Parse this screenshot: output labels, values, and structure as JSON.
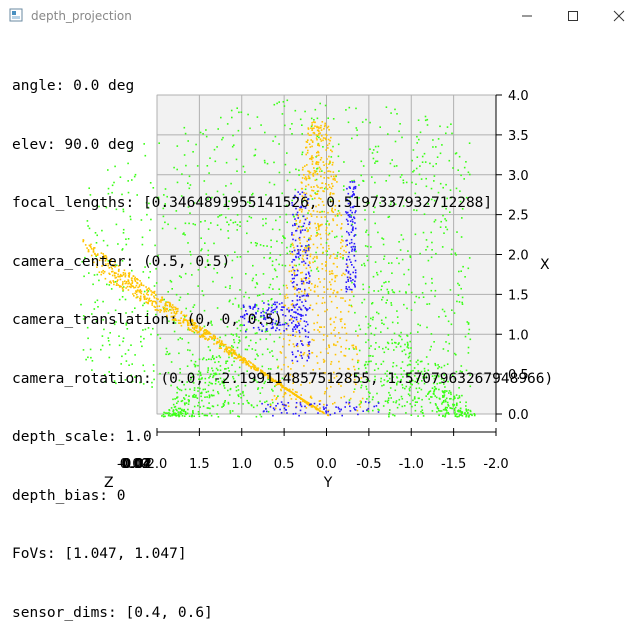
{
  "window": {
    "title": "depth_projection",
    "controls": [
      "minimize",
      "maximize",
      "close"
    ]
  },
  "info_lines": [
    "angle: 0.0 deg",
    "elev: 90.0 deg",
    "focal_lengths: [0.3464891955141526, 0.5197337932712288]",
    "camera_center: (0.5, 0.5)",
    "camera_translation: (0, 0, 0.5)",
    "camera_rotation: (0.0, -2.199114857512855, 1.5707963267948966)",
    "depth_scale: 1.0",
    "depth_bias: 0",
    "FoVs: [1.047, 1.047]",
    "sensor_dims: [0.4, 0.6]"
  ],
  "chart_data": {
    "type": "scatter",
    "projection": "3d",
    "axes": {
      "x": {
        "label": "X",
        "ticks": [
          "0.0",
          "0.5",
          "1.0",
          "1.5",
          "2.0",
          "2.5",
          "3.0",
          "3.5",
          "4.0"
        ],
        "range": [
          0,
          4
        ]
      },
      "y": {
        "label": "Y",
        "ticks": [
          "2.0",
          "1.5",
          "1.0",
          "0.5",
          "0.0",
          "-0.5",
          "-1.0",
          "-1.5",
          "-2.0"
        ],
        "range": [
          2,
          -2
        ]
      },
      "z": {
        "label": "Z",
        "ticks": [
          "-0.04",
          "-0.02",
          "0.00",
          "0.02",
          "0.04"
        ]
      }
    },
    "colors": {
      "green": "#39ff14",
      "orange": "#ffc400",
      "blue": "#2a1aff",
      "pane": "#f2f2f2",
      "grid": "#b0b0b0"
    },
    "clusters": [
      {
        "color": "green",
        "description": "outer cloud"
      },
      {
        "color": "orange",
        "description": "center surface"
      },
      {
        "color": "blue",
        "description": "edge points"
      }
    ]
  }
}
